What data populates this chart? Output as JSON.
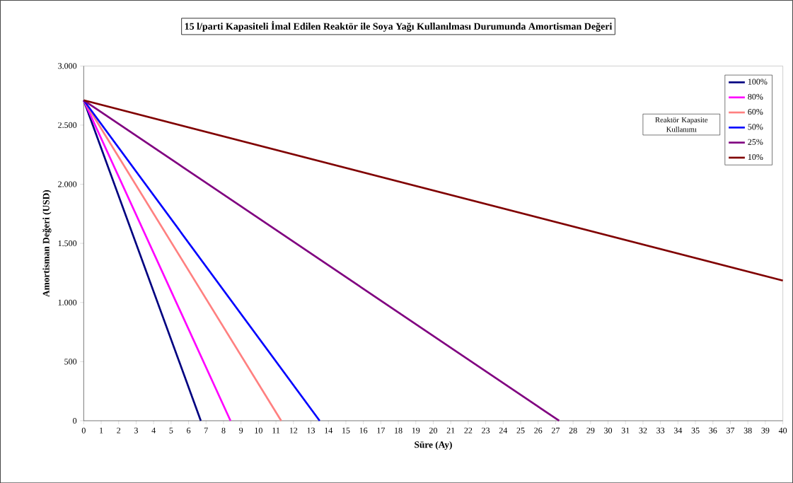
{
  "chart_data": {
    "type": "line",
    "title": "15 l/parti Kapasiteli İmal Edilen Reaktör ile Soya Yağı Kullanılması Durumunda Amortisman Değeri",
    "xlabel": "Süre   (Ay)",
    "ylabel": "Amortisman Değeri   (USD)",
    "legend_title": "Reaktör Kapasite Kullanımı",
    "series": [
      {
        "name": "100%",
        "color": "#000080",
        "x": [
          0,
          6.7
        ],
        "values": [
          2710,
          0
        ]
      },
      {
        "name": "80%",
        "color": "#ff00ff",
        "x": [
          0,
          8.4
        ],
        "values": [
          2710,
          0
        ]
      },
      {
        "name": "60%",
        "color": "#ff8080",
        "x": [
          0,
          11.3
        ],
        "values": [
          2710,
          0
        ]
      },
      {
        "name": "50%",
        "color": "#0000ff",
        "x": [
          0,
          13.5
        ],
        "values": [
          2710,
          0
        ]
      },
      {
        "name": "25%",
        "color": "#800080",
        "x": [
          0,
          27.2
        ],
        "values": [
          2710,
          0
        ]
      },
      {
        "name": "10%",
        "color": "#800000",
        "x": [
          0,
          40
        ],
        "values": [
          2710,
          1185
        ]
      }
    ],
    "xlim": [
      0,
      40
    ],
    "xticks": [
      0,
      1,
      2,
      3,
      4,
      5,
      6,
      7,
      8,
      9,
      10,
      11,
      12,
      13,
      14,
      15,
      16,
      17,
      18,
      19,
      20,
      21,
      22,
      23,
      24,
      25,
      26,
      27,
      28,
      29,
      30,
      31,
      32,
      33,
      34,
      35,
      36,
      37,
      38,
      39,
      40
    ],
    "ylim": [
      0,
      3000
    ],
    "yticks": [
      {
        "value": 0,
        "label": "0"
      },
      {
        "value": 500,
        "label": "500"
      },
      {
        "value": 1000,
        "label": "1.000"
      },
      {
        "value": 1500,
        "label": "1.500"
      },
      {
        "value": 2000,
        "label": "2.000"
      },
      {
        "value": 2500,
        "label": "2.500"
      },
      {
        "value": 3000,
        "label": "3.000"
      }
    ],
    "grid": false,
    "legend": "top right",
    "marker": "none",
    "line_style": "solid"
  }
}
